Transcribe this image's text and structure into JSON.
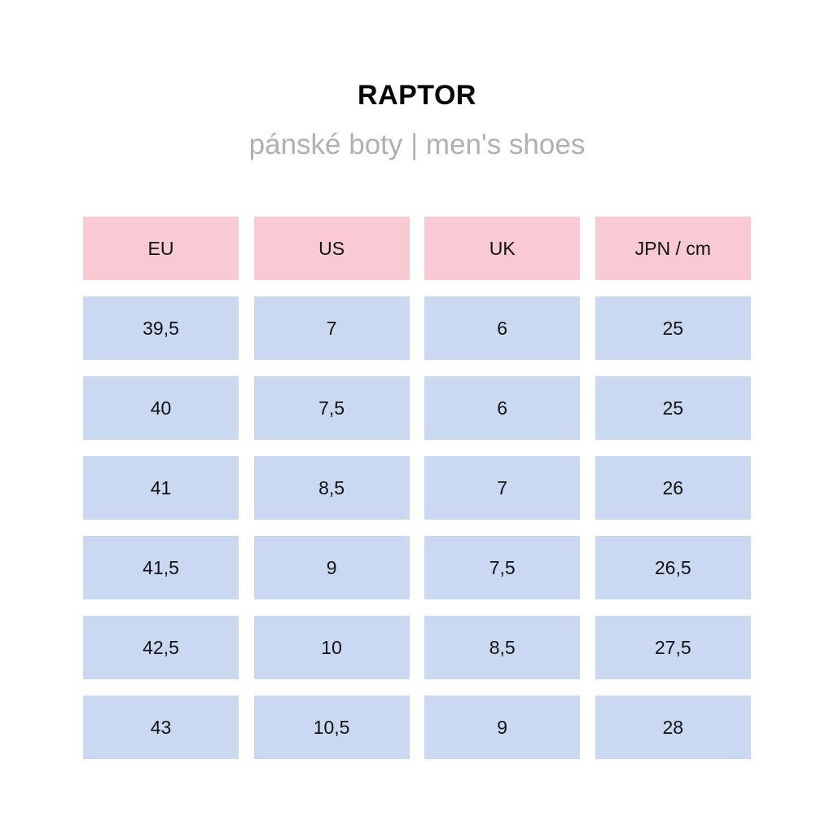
{
  "title": "RAPTOR",
  "subtitle": "pánské boty | men's shoes",
  "colors": {
    "header_bg": "#f8cad4",
    "cell_bg": "#cad8f2",
    "subtitle_text": "#b0b0b0"
  },
  "table": {
    "headers": [
      "EU",
      "US",
      "UK",
      "JPN / cm"
    ],
    "rows": [
      [
        "39,5",
        "7",
        "6",
        "25"
      ],
      [
        "40",
        "7,5",
        "6",
        "25"
      ],
      [
        "41",
        "8,5",
        "7",
        "26"
      ],
      [
        "41,5",
        "9",
        "7,5",
        "26,5"
      ],
      [
        "42,5",
        "10",
        "8,5",
        "27,5"
      ],
      [
        "43",
        "10,5",
        "9",
        "28"
      ]
    ]
  }
}
